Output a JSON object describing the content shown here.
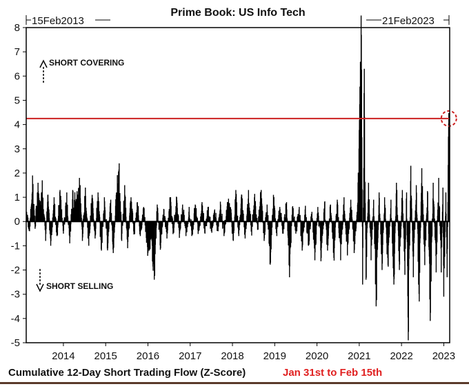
{
  "header": {
    "title": "Prime Book: US Info Tech",
    "start_date": "15Feb2013",
    "end_date": "21Feb2023"
  },
  "annotations": {
    "short_covering": "SHORT COVERING",
    "short_selling": "SHORT SELLING"
  },
  "footer": {
    "caption": "Cumulative 12-Day Short Trading Flow (Z-Score)",
    "highlight": "Jan 31st to Feb 15th"
  },
  "colors": {
    "bars": "#000000",
    "reference_line": "#cc2020",
    "highlight_text": "#e02020",
    "circle": "#cc2020"
  },
  "chart_data": {
    "type": "bar",
    "title": "Prime Book: US Info Tech",
    "xlabel": "",
    "ylabel": "",
    "ylim": [
      -5,
      8
    ],
    "yticks": [
      8,
      7,
      6,
      5,
      4,
      3,
      2,
      1,
      0,
      -1,
      -2,
      -3,
      -4,
      -5
    ],
    "xticks": [
      "2014",
      "2015",
      "2016",
      "2017",
      "2018",
      "2019",
      "2020",
      "2021",
      "2022",
      "2023"
    ],
    "x_start": 2013.12,
    "x_end": 2023.14,
    "reference_line": 4.25,
    "highlight_point": {
      "x": 2023.12,
      "y": 4.25
    },
    "series": [
      {
        "values": [
          [
            2013.13,
            0.4
          ],
          [
            2013.2,
            -0.4
          ],
          [
            2013.27,
            1.9
          ],
          [
            2013.33,
            -0.3
          ],
          [
            2013.4,
            1.6
          ],
          [
            2013.45,
            0.6
          ],
          [
            2013.5,
            1.7
          ],
          [
            2013.58,
            -0.8
          ],
          [
            2013.63,
            1.1
          ],
          [
            2013.7,
            -1.0
          ],
          [
            2013.78,
            1.0
          ],
          [
            2013.85,
            -0.6
          ],
          [
            2013.92,
            1.3
          ],
          [
            2014.0,
            -0.5
          ],
          [
            2014.08,
            1.2
          ],
          [
            2014.15,
            -0.9
          ],
          [
            2014.22,
            1.3
          ],
          [
            2014.3,
            0.9
          ],
          [
            2014.38,
            1.8
          ],
          [
            2014.45,
            -0.8
          ],
          [
            2014.52,
            1.4
          ],
          [
            2014.6,
            -1.0
          ],
          [
            2014.68,
            1.1
          ],
          [
            2014.75,
            -0.7
          ],
          [
            2014.82,
            1.2
          ],
          [
            2014.9,
            -1.2
          ],
          [
            2014.97,
            1.0
          ],
          [
            2015.05,
            -1.1
          ],
          [
            2015.12,
            0.9
          ],
          [
            2015.18,
            -1.3
          ],
          [
            2015.25,
            1.1
          ],
          [
            2015.32,
            2.4
          ],
          [
            2015.38,
            -0.8
          ],
          [
            2015.45,
            1.5
          ],
          [
            2015.52,
            -1.1
          ],
          [
            2015.6,
            1.0
          ],
          [
            2015.68,
            -0.5
          ],
          [
            2015.75,
            0.8
          ],
          [
            2015.82,
            -0.6
          ],
          [
            2015.9,
            0.6
          ],
          [
            2016.0,
            -1.3
          ],
          [
            2016.08,
            -0.7
          ],
          [
            2016.15,
            -2.4
          ],
          [
            2016.22,
            0.7
          ],
          [
            2016.3,
            -1.1
          ],
          [
            2016.38,
            0.5
          ],
          [
            2016.45,
            -0.7
          ],
          [
            2016.52,
            1.0
          ],
          [
            2016.6,
            -0.4
          ],
          [
            2016.68,
            1.0
          ],
          [
            2016.75,
            -0.5
          ],
          [
            2016.82,
            0.7
          ],
          [
            2016.9,
            -0.6
          ],
          [
            2016.97,
            0.4
          ],
          [
            2017.05,
            -0.5
          ],
          [
            2017.12,
            0.7
          ],
          [
            2017.2,
            -0.4
          ],
          [
            2017.28,
            0.8
          ],
          [
            2017.35,
            -0.5
          ],
          [
            2017.42,
            0.6
          ],
          [
            2017.5,
            -0.4
          ],
          [
            2017.58,
            0.5
          ],
          [
            2017.66,
            -0.4
          ],
          [
            2017.72,
            0.7
          ],
          [
            2017.8,
            -0.6
          ],
          [
            2017.88,
            0.8
          ],
          [
            2017.95,
            0.6
          ],
          [
            2018.02,
            -0.8
          ],
          [
            2018.08,
            1.3
          ],
          [
            2018.15,
            -0.6
          ],
          [
            2018.22,
            1.1
          ],
          [
            2018.3,
            -0.7
          ],
          [
            2018.38,
            1.3
          ],
          [
            2018.45,
            -0.4
          ],
          [
            2018.52,
            1.0
          ],
          [
            2018.6,
            -0.3
          ],
          [
            2018.68,
            1.3
          ],
          [
            2018.75,
            -0.8
          ],
          [
            2018.82,
            0.7
          ],
          [
            2018.9,
            -1.7
          ],
          [
            2018.97,
            1.1
          ],
          [
            2019.05,
            -0.6
          ],
          [
            2019.12,
            0.6
          ],
          [
            2019.2,
            -0.5
          ],
          [
            2019.28,
            0.8
          ],
          [
            2019.35,
            -2.3
          ],
          [
            2019.42,
            0.6
          ],
          [
            2019.5,
            -0.5
          ],
          [
            2019.58,
            0.6
          ],
          [
            2019.65,
            -1.2
          ],
          [
            2019.72,
            0.5
          ],
          [
            2019.8,
            -1.0
          ],
          [
            2019.88,
            0.4
          ],
          [
            2019.95,
            -1.6
          ],
          [
            2020.02,
            0.6
          ],
          [
            2020.1,
            -1.5
          ],
          [
            2020.18,
            0.8
          ],
          [
            2020.25,
            -1.2
          ],
          [
            2020.32,
            0.7
          ],
          [
            2020.4,
            -1.5
          ],
          [
            2020.48,
            0.9
          ],
          [
            2020.56,
            -1.6
          ],
          [
            2020.64,
            1.0
          ],
          [
            2020.72,
            -1.4
          ],
          [
            2020.8,
            0.9
          ],
          [
            2020.88,
            -1.3
          ],
          [
            2020.96,
            0.7
          ],
          [
            2021.05,
            7.7
          ],
          [
            2021.08,
            -2.6
          ],
          [
            2021.12,
            6.3
          ],
          [
            2021.16,
            -2.4
          ],
          [
            2021.22,
            1.6
          ],
          [
            2021.28,
            -1.6
          ],
          [
            2021.34,
            0.9
          ],
          [
            2021.4,
            -3.5
          ],
          [
            2021.47,
            1.2
          ],
          [
            2021.54,
            -2.0
          ],
          [
            2021.6,
            1.0
          ],
          [
            2021.68,
            -1.8
          ],
          [
            2021.75,
            0.9
          ],
          [
            2021.82,
            -2.6
          ],
          [
            2021.88,
            1.6
          ],
          [
            2021.95,
            -2.0
          ],
          [
            2022.02,
            1.3
          ],
          [
            2022.08,
            -2.2
          ],
          [
            2022.12,
            1.2
          ],
          [
            2022.16,
            -4.9
          ],
          [
            2022.22,
            2.3
          ],
          [
            2022.28,
            -2.3
          ],
          [
            2022.35,
            1.5
          ],
          [
            2022.42,
            -3.3
          ],
          [
            2022.48,
            2.2
          ],
          [
            2022.55,
            -1.8
          ],
          [
            2022.62,
            1.2
          ],
          [
            2022.68,
            -4.1
          ],
          [
            2022.75,
            1.6
          ],
          [
            2022.82,
            -2.1
          ],
          [
            2022.88,
            1.8
          ],
          [
            2022.94,
            -2.1
          ],
          [
            2022.98,
            1.4
          ],
          [
            2023.0,
            -3.1
          ],
          [
            2023.05,
            1.2
          ],
          [
            2023.08,
            -2.3
          ],
          [
            2023.11,
            3.5
          ],
          [
            2023.13,
            4.25
          ]
        ]
      }
    ]
  }
}
